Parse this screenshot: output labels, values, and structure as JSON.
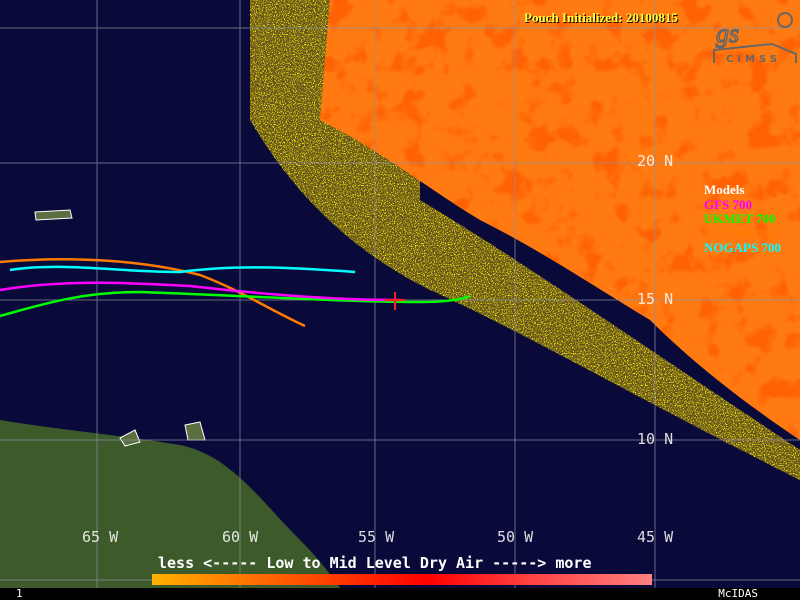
{
  "title": "Pouch Initialized: 20100815",
  "logo": "CIMSS",
  "legend": {
    "heading": "Models",
    "items": [
      {
        "label": "GFS 700",
        "color": "#ff00ff"
      },
      {
        "label": "UKMET 700",
        "color": "#00ff00"
      },
      {
        "label": "ECMWF 700",
        "color": "#ff7a00"
      },
      {
        "label": "NOGAPS 700",
        "color": "#00ffff"
      }
    ]
  },
  "longitude_labels": [
    "65 W",
    "60 W",
    "55 W",
    "50 W",
    "45 W"
  ],
  "latitude_labels": [
    "20 N",
    "15 N",
    "10 N"
  ],
  "colorbar": {
    "label": "less <----- Low to Mid Level Dry Air -----> more"
  },
  "footer": {
    "frame": "1",
    "software": "McIDAS"
  }
}
